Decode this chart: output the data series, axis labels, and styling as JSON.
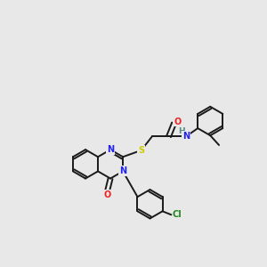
{
  "bg": "#e8e8e8",
  "bc": "#1a1a1a",
  "Nc": "#2222ee",
  "Oc": "#ee2222",
  "Sc": "#cccc00",
  "Clc": "#228822",
  "Hc": "#558888",
  "figsize": [
    3.0,
    3.0
  ],
  "dpi": 100,
  "lw": 1.4,
  "r": 0.33,
  "xlim": [
    -0.5,
    5.5
  ],
  "ylim": [
    -0.2,
    5.8
  ]
}
